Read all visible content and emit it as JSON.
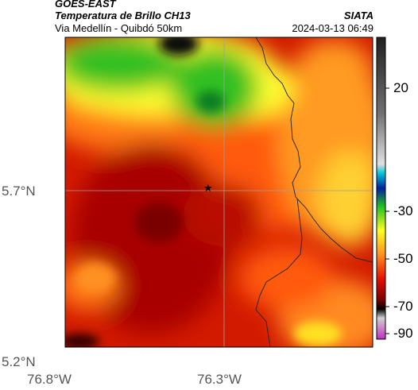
{
  "header": {
    "satellite": "GOES-EAST",
    "product": "Temperatura de Brillo CH13",
    "region": "Via Medellín - Quibdó 50km",
    "organization": "SIATA",
    "datetime": "2024-03-13 06:49"
  },
  "axes": {
    "lat_ticks": [
      {
        "label": "5.7°N",
        "value": 5.7
      },
      {
        "label": "5.2°N",
        "value": 5.2
      }
    ],
    "lon_ticks": [
      {
        "label": "76.8°W",
        "value": -76.8
      },
      {
        "label": "76.3°W",
        "value": -76.3
      }
    ]
  },
  "colorbar": {
    "ticks": [
      {
        "label": "20",
        "value": 20
      },
      {
        "label": "-30",
        "value": -30
      },
      {
        "label": "-50",
        "value": -50
      },
      {
        "label": "-70",
        "value": -70
      },
      {
        "label": "-90",
        "value": -90
      }
    ],
    "colors": {
      "warm": "#202020",
      "gray": "#c0c0c0",
      "cyan": "#00c8d8",
      "blue": "#0020a0",
      "green": "#20c020",
      "yellow": "#ffff20",
      "orange": "#ff9020",
      "red": "#e81000",
      "darkred": "#7a0000",
      "black": "#000000",
      "magenta": "#c030c0"
    }
  },
  "markers": [
    {
      "name": "station-star",
      "symbol": "★"
    }
  ]
}
